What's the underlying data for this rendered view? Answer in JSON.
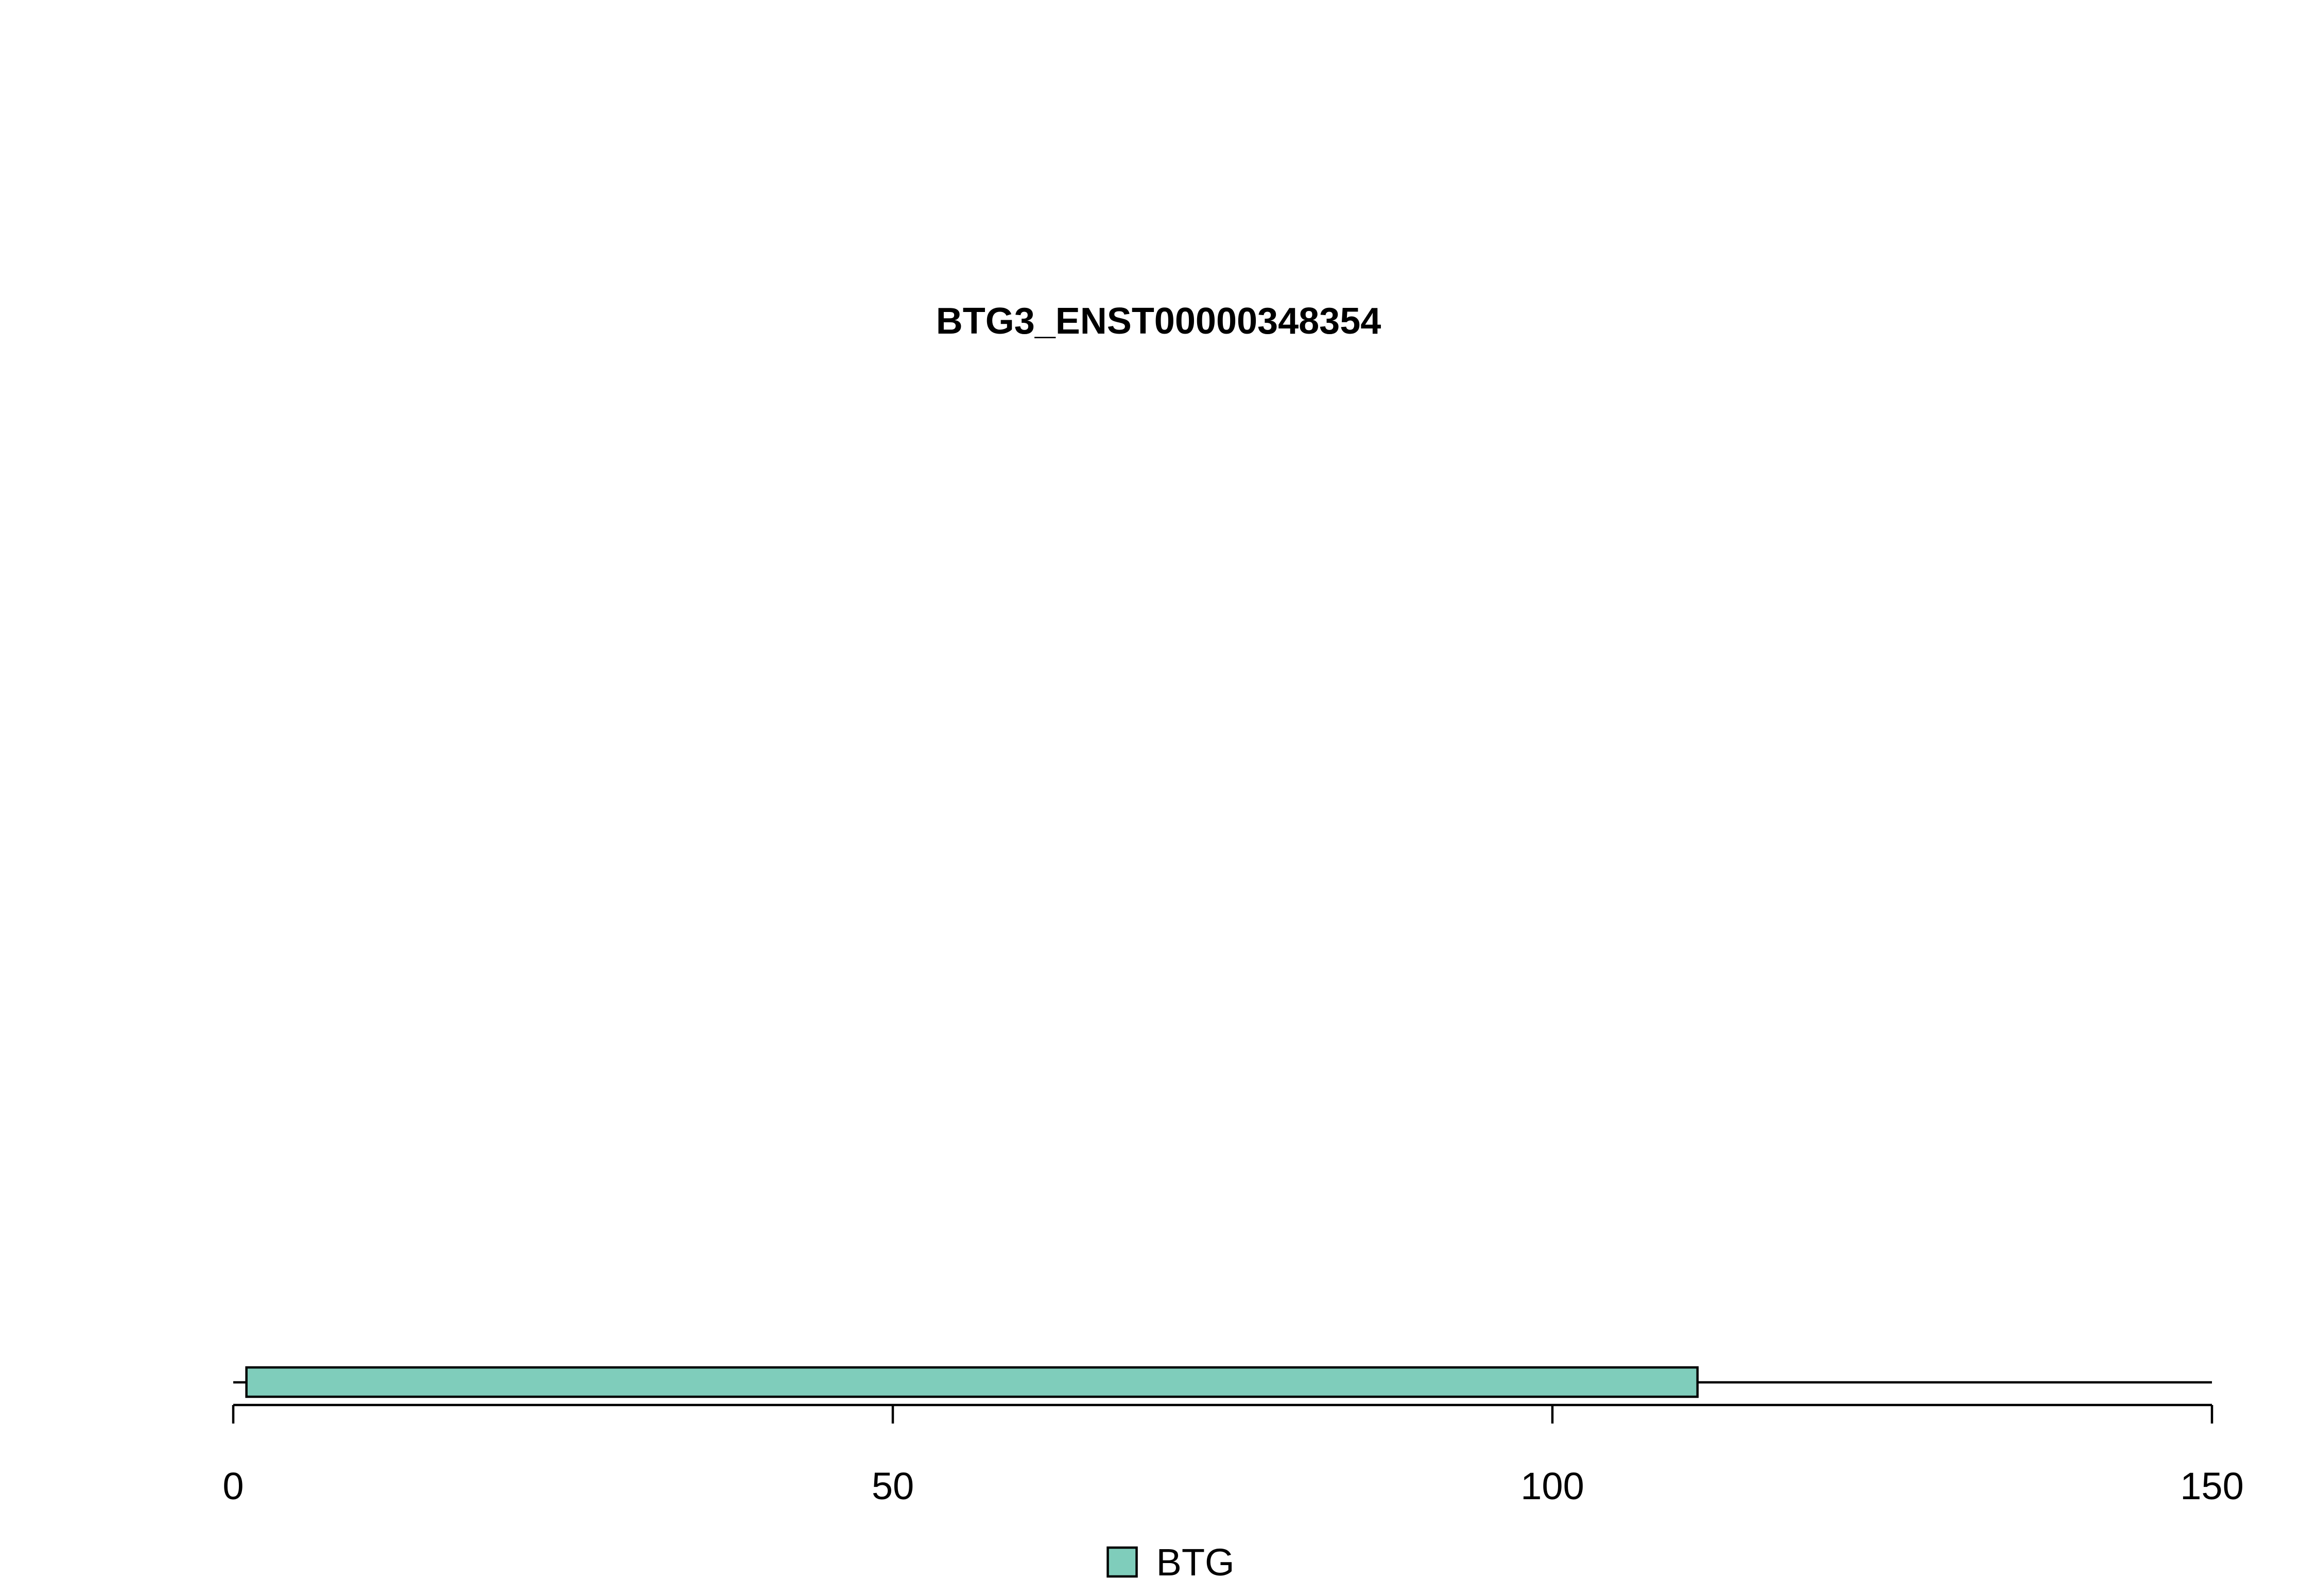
{
  "chart_data": {
    "type": "bar",
    "title": "BTG3_ENST00000348354",
    "xlabel": "",
    "ylabel": "",
    "xlim": [
      0,
      150
    ],
    "x_ticks": [
      0,
      50,
      100,
      150
    ],
    "x_tick_labels": [
      "0",
      "50",
      "100",
      "150"
    ],
    "protein_length": 150,
    "domains": [
      {
        "name": "BTG",
        "start": 1,
        "end": 111,
        "color": "#7fcdbb"
      }
    ],
    "legend": {
      "entries": [
        {
          "label": "BTG",
          "color": "#7fcdbb"
        }
      ],
      "placement": "bottom-center"
    },
    "grid": false
  }
}
